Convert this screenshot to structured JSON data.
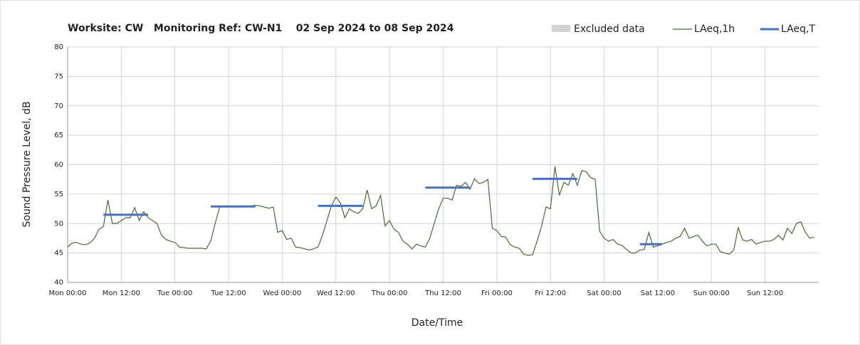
{
  "chart_data": {
    "type": "line",
    "title": "Worksite: CW   Monitoring Ref: CW-N1    02 Sep 2024 to 08 Sep 2024",
    "x_label": "Date/Time",
    "y_label": "Sound Pressure Level, dB",
    "xlim": [
      0,
      168
    ],
    "ylim": [
      40,
      80
    ],
    "yticks": [
      40,
      45,
      50,
      55,
      60,
      65,
      70,
      75,
      80
    ],
    "xticks": [
      {
        "value": 0,
        "label": "Mon 00:00"
      },
      {
        "value": 12,
        "label": "Mon 12:00"
      },
      {
        "value": 24,
        "label": "Tue 00:00"
      },
      {
        "value": 36,
        "label": "Tue 12:00"
      },
      {
        "value": 48,
        "label": "Wed 00:00"
      },
      {
        "value": 60,
        "label": "Wed 12:00"
      },
      {
        "value": 72,
        "label": "Thu 00:00"
      },
      {
        "value": 84,
        "label": "Thu 12:00"
      },
      {
        "value": 96,
        "label": "Fri 00:00"
      },
      {
        "value": 108,
        "label": "Fri 12:00"
      },
      {
        "value": 120,
        "label": "Sat 00:00"
      },
      {
        "value": 132,
        "label": "Sat 12:00"
      },
      {
        "value": 144,
        "label": "Sun 00:00"
      },
      {
        "value": 156,
        "label": "Sun 12:00"
      }
    ],
    "grid": true,
    "excluded_legend": {
      "name": "Excluded data",
      "color": "#d3d3d3"
    },
    "series": [
      {
        "name": "LAeq,1h",
        "color": "#4a6b34",
        "x": [
          0,
          1,
          2,
          3,
          4,
          5,
          6,
          7,
          8,
          9,
          10,
          11,
          12,
          13,
          14,
          15,
          16,
          17,
          18,
          19,
          20,
          21,
          22,
          23,
          24,
          25,
          26,
          27,
          28,
          29,
          30,
          31,
          32,
          33,
          34,
          35,
          36,
          37,
          38,
          39,
          40,
          41,
          42,
          43,
          44,
          45,
          46,
          47,
          48,
          49,
          50,
          51,
          52,
          53,
          54,
          55,
          56,
          57,
          58,
          59,
          60,
          61,
          62,
          63,
          64,
          65,
          66,
          67,
          68,
          69,
          70,
          71,
          72,
          73,
          74,
          75,
          76,
          77,
          78,
          79,
          80,
          81,
          82,
          83,
          84,
          85,
          86,
          87,
          88,
          89,
          90,
          91,
          92,
          93,
          94,
          95,
          96,
          97,
          98,
          99,
          100,
          101,
          102,
          103,
          104,
          105,
          106,
          107,
          108,
          109,
          110,
          111,
          112,
          113,
          114,
          115,
          116,
          117,
          118,
          119,
          120,
          121,
          122,
          123,
          124,
          125,
          126,
          127,
          128,
          129,
          130,
          131,
          132,
          133,
          134,
          135,
          136,
          137,
          138,
          139,
          140,
          141,
          142,
          143,
          144,
          145,
          146,
          147,
          148,
          149,
          150,
          151,
          152,
          153,
          154,
          155,
          156,
          157,
          158,
          159,
          160,
          161,
          162,
          163,
          164,
          165,
          166,
          167
        ],
        "values": [
          46,
          46.7,
          46.8,
          46.5,
          46.4,
          46.7,
          47.5,
          49,
          49.5,
          54,
          50,
          50,
          50.5,
          51,
          51,
          52.7,
          50.5,
          52,
          51,
          50.5,
          50,
          48,
          47.3,
          47,
          46.8,
          46,
          45.9,
          45.8,
          45.8,
          45.8,
          45.8,
          45.7,
          47,
          50,
          52.8,
          52.8,
          53,
          52.8,
          53,
          52.8,
          52.9,
          53,
          53.1,
          53,
          52.8,
          52.6,
          52.8,
          48.5,
          48.8,
          47.3,
          47.5,
          46,
          45.9,
          45.7,
          45.5,
          45.7,
          46,
          48,
          50.5,
          53,
          54.5,
          53.5,
          51,
          52.5,
          52,
          51.7,
          52.5,
          55.7,
          52.5,
          53,
          54.8,
          49.6,
          50.5,
          49,
          48.5,
          47,
          46.5,
          45.7,
          46.5,
          46.2,
          46,
          47.5,
          50,
          52.5,
          54.3,
          54.3,
          54,
          56.5,
          56.3,
          57,
          55.8,
          57.6,
          56.8,
          57,
          57.5,
          49.2,
          48.8,
          47.8,
          47.7,
          46.4,
          46,
          45.8,
          44.8,
          44.6,
          44.7,
          47,
          49.5,
          52.8,
          52.5,
          59.7,
          54.8,
          57,
          56.5,
          58.5,
          56.5,
          59,
          58.8,
          57.8,
          57.5,
          48.7,
          47.5,
          47,
          47.3,
          46.5,
          46.3,
          45.6,
          45,
          45,
          45.5,
          45.6,
          48.5,
          46,
          46.2,
          46.5,
          46.8,
          47,
          47.5,
          47.8,
          49.2,
          47.5,
          47.8,
          48,
          47,
          46.2,
          46.5,
          46.5,
          45.2,
          45,
          44.8,
          45.5,
          49.3,
          47.2,
          47,
          47.3,
          46.5,
          46.8,
          47,
          47,
          47.3,
          48,
          47.2,
          49.2,
          48.3,
          50,
          50.3,
          48.5,
          47.5,
          47.7
        ]
      },
      {
        "name": "LAeq,T",
        "color": "#4472c4",
        "segments": [
          {
            "start": 8,
            "end": 18,
            "value": 51.5
          },
          {
            "start": 32,
            "end": 42,
            "value": 52.9
          },
          {
            "start": 56,
            "end": 66,
            "value": 53
          },
          {
            "start": 80,
            "end": 90,
            "value": 56.1
          },
          {
            "start": 104,
            "end": 114,
            "value": 57.6
          },
          {
            "start": 128,
            "end": 133,
            "value": 46.5
          }
        ]
      }
    ]
  }
}
